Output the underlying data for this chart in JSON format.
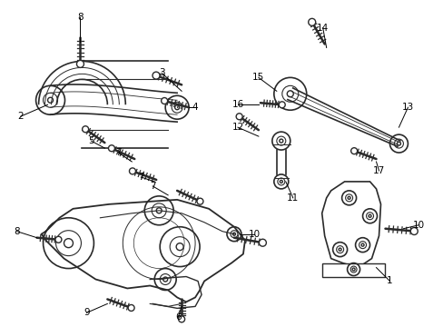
{
  "bg_color": "#ffffff",
  "line_color": "#2a2a2a",
  "figsize": [
    4.89,
    3.6
  ],
  "dpi": 100,
  "label_fs": 7.5
}
